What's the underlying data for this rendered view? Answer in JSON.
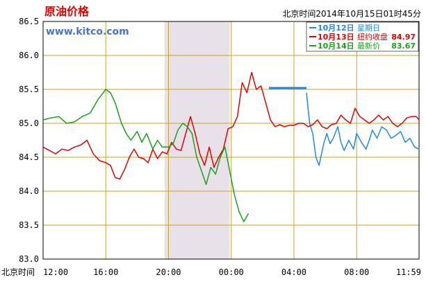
{
  "chart_data": {
    "type": "line",
    "title": "原油价格",
    "watermark": "www.kitco.com",
    "timestamp": "北京时间2014年10月15日01时45分",
    "x_axis_name": "北京时间",
    "xlabel": "",
    "ylabel": "",
    "x_ticks": [
      "12:00",
      "16:00",
      "20:00",
      "00:00",
      "04:00",
      "08:00",
      "11:59"
    ],
    "x_tick_hours": [
      0,
      4,
      8,
      12,
      16,
      20,
      23.98
    ],
    "xlim": [
      0,
      23.98
    ],
    "ylim": [
      83.0,
      86.5
    ],
    "y_ticks": [
      "83.0",
      "83.5",
      "84.0",
      "84.5",
      "85.0",
      "85.5",
      "86.0",
      "86.5"
    ],
    "y_tick_values": [
      83.0,
      83.5,
      84.0,
      84.5,
      85.0,
      85.5,
      86.0,
      86.5
    ],
    "grid": true,
    "shaded_band_hours": [
      7.75,
      11.9
    ],
    "legend": {
      "placement": "top-right",
      "entries": [
        {
          "date": "10月12日",
          "label": "星期日",
          "value": "",
          "color": "#1e88e5"
        },
        {
          "date": "10月13日",
          "label": "纽约收盘",
          "value": "84.97",
          "color": "#e00000"
        },
        {
          "date": "10月14日",
          "label": "最新价",
          "value": "83.67",
          "color": "#1aa01a"
        }
      ]
    },
    "series": [
      {
        "name": "10月12日",
        "color": "#1e88e5",
        "x": [
          14.4,
          16.8
        ],
        "y": [
          85.52,
          85.52
        ],
        "x2": [
          16.8,
          17.0,
          17.2,
          17.4,
          17.6,
          17.9,
          18.1,
          18.3,
          18.5,
          18.8,
          19.0,
          19.2,
          19.5,
          19.8,
          20.0,
          20.3,
          20.6,
          20.8,
          21.0,
          21.3,
          21.6,
          21.9,
          22.2,
          22.5,
          22.8,
          23.1,
          23.4,
          23.7,
          23.98
        ],
        "y2": [
          85.45,
          85.0,
          84.85,
          84.5,
          84.38,
          84.7,
          84.85,
          84.7,
          84.78,
          84.95,
          84.72,
          84.6,
          84.75,
          84.62,
          84.85,
          84.72,
          84.62,
          84.75,
          84.9,
          84.78,
          84.95,
          84.9,
          84.78,
          84.82,
          84.88,
          84.72,
          84.78,
          84.65,
          84.62
        ]
      },
      {
        "name": "10月13日",
        "color": "#e00000",
        "x": [
          0,
          0.4,
          0.8,
          1.2,
          1.6,
          2.0,
          2.4,
          2.8,
          3.2,
          3.6,
          4.0,
          4.3,
          4.6,
          4.9,
          5.2,
          5.5,
          5.8,
          6.1,
          6.4,
          6.7,
          7.0,
          7.3,
          7.6,
          7.9,
          8.2,
          8.5,
          8.8,
          9.1,
          9.4,
          9.7,
          10.0,
          10.3,
          10.6,
          10.9,
          11.2,
          11.5,
          11.8,
          12.1,
          12.4,
          12.7,
          13.0,
          13.3,
          13.6,
          13.9,
          14.2,
          14.5,
          14.8,
          15.1,
          15.4,
          15.7,
          16.0,
          16.3,
          16.6,
          16.9,
          17.2,
          17.5,
          17.8,
          18.1,
          18.4,
          18.7,
          19.0,
          19.3,
          19.6,
          19.9,
          20.2,
          20.5,
          20.8,
          21.1,
          21.4,
          21.7,
          22.0,
          22.3,
          22.6,
          22.9,
          23.2,
          23.5,
          23.8,
          23.98
        ],
        "y": [
          84.65,
          84.6,
          84.55,
          84.62,
          84.6,
          84.65,
          84.68,
          84.75,
          84.55,
          84.45,
          84.42,
          84.38,
          84.2,
          84.18,
          84.32,
          84.5,
          84.62,
          84.5,
          84.48,
          84.42,
          84.62,
          84.48,
          84.58,
          84.55,
          84.72,
          84.62,
          84.6,
          84.85,
          85.1,
          84.85,
          84.55,
          84.38,
          84.65,
          84.35,
          84.5,
          84.62,
          84.92,
          84.95,
          85.1,
          85.6,
          85.45,
          85.75,
          85.5,
          85.55,
          85.3,
          85.05,
          84.95,
          84.98,
          84.95,
          84.97,
          84.97,
          85.0,
          85.0,
          84.95,
          84.98,
          85.05,
          84.95,
          84.92,
          84.98,
          85.0,
          85.12,
          85.05,
          85.0,
          85.22,
          85.1,
          85.05,
          85.0,
          85.05,
          85.12,
          85.05,
          85.1,
          85.0,
          84.95,
          85.0,
          85.08,
          85.1,
          85.1,
          85.05
        ]
      },
      {
        "name": "10月14日",
        "color": "#1aa01a",
        "x": [
          0,
          0.5,
          1.0,
          1.5,
          2.0,
          2.5,
          3.0,
          3.5,
          4.0,
          4.3,
          4.6,
          5.0,
          5.3,
          5.6,
          6.0,
          6.3,
          6.6,
          7.0,
          7.3,
          7.6,
          8.0,
          8.3,
          8.6,
          8.9,
          9.2,
          9.5,
          9.8,
          10.1,
          10.4,
          10.7,
          11.0,
          11.3,
          11.6,
          11.9,
          12.2,
          12.5,
          12.8,
          13.1
        ],
        "y": [
          85.05,
          85.08,
          85.1,
          85.0,
          85.02,
          85.1,
          85.15,
          85.35,
          85.5,
          85.45,
          85.3,
          85.0,
          84.85,
          84.75,
          84.88,
          84.72,
          84.85,
          84.62,
          84.75,
          84.65,
          84.65,
          84.7,
          84.9,
          85.0,
          84.95,
          84.85,
          84.5,
          84.3,
          84.1,
          84.35,
          84.25,
          84.5,
          84.65,
          84.3,
          83.95,
          83.7,
          83.55,
          83.67
        ]
      }
    ]
  }
}
